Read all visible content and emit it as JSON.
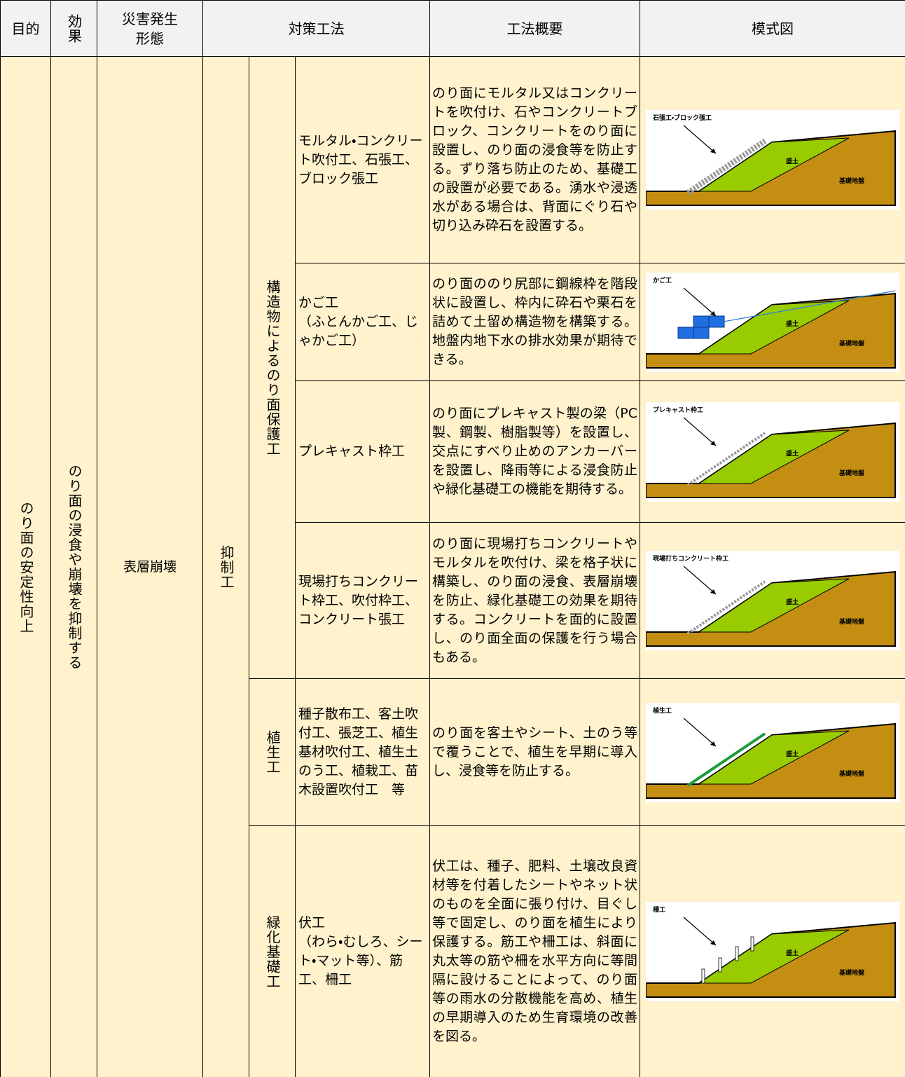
{
  "header": {
    "purpose": "目的",
    "effect": "効果",
    "disaster": "災害発生\n形態",
    "countermeasure": "対策工法",
    "overview": "工法概要",
    "diagram": "模式図"
  },
  "purpose": "のり面の安定性向上",
  "effect": "のり面の浸食や崩壊を抑制する",
  "disaster": "表層崩壊",
  "category": "抑制工",
  "groups": [
    {
      "name": "構造物によるのり面保護工",
      "methods": [
        {
          "method": "モルタル・コンクリート吹付工、石張工、ブロック張工",
          "overview": "のり面にモルタル又はコンクリートを吹付け、石やコンクリートブロック、コンクリートをのり面に設置し、のり面の浸食等を防止する。ずり落ち防止のため、基礎工の設置が必要である。湧水や浸透水がある場合は、背面にぐり石や切り込み砕石を設置する。",
          "diagram": {
            "label": "石張工・ブロック張工",
            "fill": "盛土",
            "ground": "基礎地盤"
          }
        },
        {
          "method": "かご工\n（ふとんかご工、じゃかご工）",
          "overview": "のり面ののり尻部に鋼線枠を階段状に設置し、枠内に砕石や栗石を詰めて土留め構造物を構築する。地盤内地下水の排水効果が期待できる。",
          "diagram": {
            "label": "かご工",
            "fill": "盛土",
            "ground": "基礎地盤"
          }
        },
        {
          "method": "プレキャスト枠工",
          "overview": "のり面にプレキャスト製の梁（PC 製、鋼製、樹脂製等）を設置し、交点にすべり止めのアンカーバーを設置し、降雨等による浸食防止や緑化基礎工の機能を期待する。",
          "diagram": {
            "label": "プレキャスト枠工",
            "fill": "盛土",
            "ground": "基礎地盤"
          }
        },
        {
          "method": "現場打ちコンクリート枠工、吹付枠工、コンクリート張工",
          "overview": "のり面に現場打ちコンクリートやモルタルを吹付け、梁を格子状に構築し、のり面の浸食、表層崩壊を防止、緑化基礎工の効果を期待する。コンクリートを面的に設置し、のり面全面の保護を行う場合もある。",
          "diagram": {
            "label": "現場打ちコンクリート枠工",
            "fill": "盛土",
            "ground": "基礎地盤"
          }
        }
      ]
    },
    {
      "name": "植生工",
      "methods": [
        {
          "method": "種子散布工、客土吹付工、張芝工、植生基材吹付工、植生土のう工、植栽工、苗木設置吹付工　等",
          "overview": "のり面を客土やシート、土のう等で覆うことで、植生を早期に導入し、浸食等を防止する。",
          "diagram": {
            "label": "植生工",
            "fill": "盛土",
            "ground": "基礎地盤"
          }
        }
      ]
    },
    {
      "name": "緑化基礎工",
      "methods": [
        {
          "method": "伏工\n（わら・むしろ、シート・マット等）、筋工、柵工",
          "overview": "伏工は、種子、肥料、土壌改良資材等を付着したシートやネット状のものを全面に張り付け、目ぐし等で固定し、のり面を植生により保護する。筋工や柵工は、斜面に丸太等の筋や柵を水平方向に等間隔に設けることによって、のり面等の雨水の分散機能を高め、植生の早期導入のため生育環境の改善を図る。",
          "diagram": {
            "label": "柵工",
            "fill": "盛土",
            "ground": "基礎地盤"
          }
        }
      ]
    }
  ]
}
